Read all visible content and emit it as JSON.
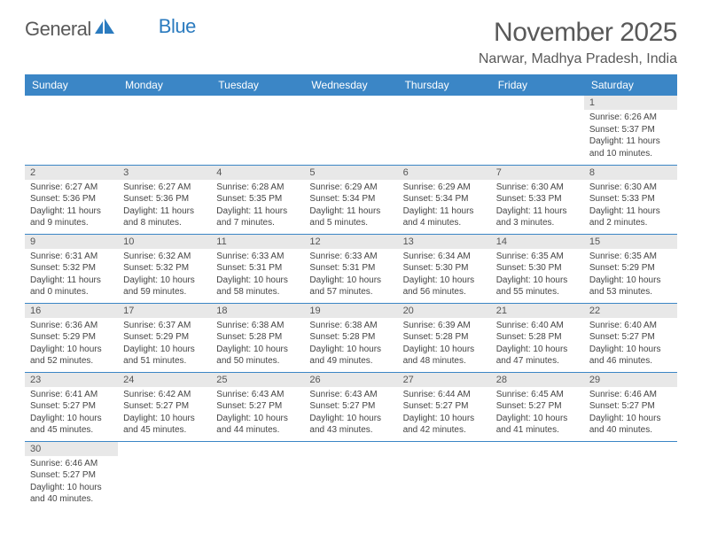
{
  "brand": {
    "part1": "General",
    "part2": "Blue"
  },
  "title": "November 2025",
  "location": "Narwar, Madhya Pradesh, India",
  "colors": {
    "header_bg": "#3b86c6",
    "header_text": "#ffffff",
    "daynum_bg": "#e8e8e8",
    "border": "#3b86c6",
    "title_color": "#595959",
    "body_text": "#444444"
  },
  "weekdays": [
    "Sunday",
    "Monday",
    "Tuesday",
    "Wednesday",
    "Thursday",
    "Friday",
    "Saturday"
  ],
  "weeks": [
    [
      null,
      null,
      null,
      null,
      null,
      null,
      {
        "n": "1",
        "sr": "6:26 AM",
        "ss": "5:37 PM",
        "dl": "11 hours and 10 minutes."
      }
    ],
    [
      {
        "n": "2",
        "sr": "6:27 AM",
        "ss": "5:36 PM",
        "dl": "11 hours and 9 minutes."
      },
      {
        "n": "3",
        "sr": "6:27 AM",
        "ss": "5:36 PM",
        "dl": "11 hours and 8 minutes."
      },
      {
        "n": "4",
        "sr": "6:28 AM",
        "ss": "5:35 PM",
        "dl": "11 hours and 7 minutes."
      },
      {
        "n": "5",
        "sr": "6:29 AM",
        "ss": "5:34 PM",
        "dl": "11 hours and 5 minutes."
      },
      {
        "n": "6",
        "sr": "6:29 AM",
        "ss": "5:34 PM",
        "dl": "11 hours and 4 minutes."
      },
      {
        "n": "7",
        "sr": "6:30 AM",
        "ss": "5:33 PM",
        "dl": "11 hours and 3 minutes."
      },
      {
        "n": "8",
        "sr": "6:30 AM",
        "ss": "5:33 PM",
        "dl": "11 hours and 2 minutes."
      }
    ],
    [
      {
        "n": "9",
        "sr": "6:31 AM",
        "ss": "5:32 PM",
        "dl": "11 hours and 0 minutes."
      },
      {
        "n": "10",
        "sr": "6:32 AM",
        "ss": "5:32 PM",
        "dl": "10 hours and 59 minutes."
      },
      {
        "n": "11",
        "sr": "6:33 AM",
        "ss": "5:31 PM",
        "dl": "10 hours and 58 minutes."
      },
      {
        "n": "12",
        "sr": "6:33 AM",
        "ss": "5:31 PM",
        "dl": "10 hours and 57 minutes."
      },
      {
        "n": "13",
        "sr": "6:34 AM",
        "ss": "5:30 PM",
        "dl": "10 hours and 56 minutes."
      },
      {
        "n": "14",
        "sr": "6:35 AM",
        "ss": "5:30 PM",
        "dl": "10 hours and 55 minutes."
      },
      {
        "n": "15",
        "sr": "6:35 AM",
        "ss": "5:29 PM",
        "dl": "10 hours and 53 minutes."
      }
    ],
    [
      {
        "n": "16",
        "sr": "6:36 AM",
        "ss": "5:29 PM",
        "dl": "10 hours and 52 minutes."
      },
      {
        "n": "17",
        "sr": "6:37 AM",
        "ss": "5:29 PM",
        "dl": "10 hours and 51 minutes."
      },
      {
        "n": "18",
        "sr": "6:38 AM",
        "ss": "5:28 PM",
        "dl": "10 hours and 50 minutes."
      },
      {
        "n": "19",
        "sr": "6:38 AM",
        "ss": "5:28 PM",
        "dl": "10 hours and 49 minutes."
      },
      {
        "n": "20",
        "sr": "6:39 AM",
        "ss": "5:28 PM",
        "dl": "10 hours and 48 minutes."
      },
      {
        "n": "21",
        "sr": "6:40 AM",
        "ss": "5:28 PM",
        "dl": "10 hours and 47 minutes."
      },
      {
        "n": "22",
        "sr": "6:40 AM",
        "ss": "5:27 PM",
        "dl": "10 hours and 46 minutes."
      }
    ],
    [
      {
        "n": "23",
        "sr": "6:41 AM",
        "ss": "5:27 PM",
        "dl": "10 hours and 45 minutes."
      },
      {
        "n": "24",
        "sr": "6:42 AM",
        "ss": "5:27 PM",
        "dl": "10 hours and 45 minutes."
      },
      {
        "n": "25",
        "sr": "6:43 AM",
        "ss": "5:27 PM",
        "dl": "10 hours and 44 minutes."
      },
      {
        "n": "26",
        "sr": "6:43 AM",
        "ss": "5:27 PM",
        "dl": "10 hours and 43 minutes."
      },
      {
        "n": "27",
        "sr": "6:44 AM",
        "ss": "5:27 PM",
        "dl": "10 hours and 42 minutes."
      },
      {
        "n": "28",
        "sr": "6:45 AM",
        "ss": "5:27 PM",
        "dl": "10 hours and 41 minutes."
      },
      {
        "n": "29",
        "sr": "6:46 AM",
        "ss": "5:27 PM",
        "dl": "10 hours and 40 minutes."
      }
    ],
    [
      {
        "n": "30",
        "sr": "6:46 AM",
        "ss": "5:27 PM",
        "dl": "10 hours and 40 minutes."
      },
      null,
      null,
      null,
      null,
      null,
      null
    ]
  ],
  "labels": {
    "sunrise": "Sunrise: ",
    "sunset": "Sunset: ",
    "daylight": "Daylight: "
  }
}
